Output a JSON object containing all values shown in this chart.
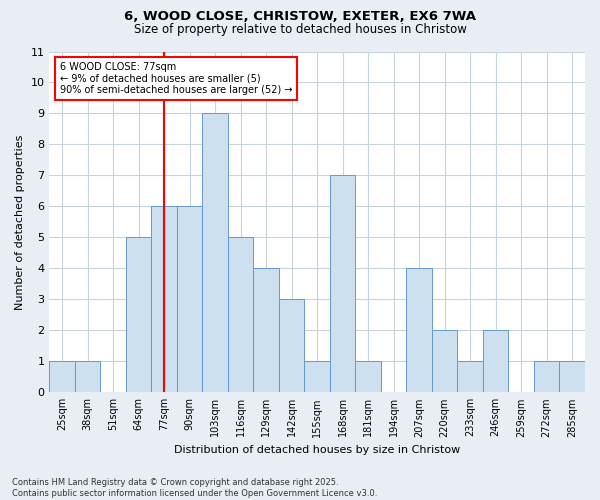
{
  "title_line1": "6, WOOD CLOSE, CHRISTOW, EXETER, EX6 7WA",
  "title_line2": "Size of property relative to detached houses in Christow",
  "xlabel": "Distribution of detached houses by size in Christow",
  "ylabel": "Number of detached properties",
  "categories": [
    "25sqm",
    "38sqm",
    "51sqm",
    "64sqm",
    "77sqm",
    "90sqm",
    "103sqm",
    "116sqm",
    "129sqm",
    "142sqm",
    "155sqm",
    "168sqm",
    "181sqm",
    "194sqm",
    "207sqm",
    "220sqm",
    "233sqm",
    "246sqm",
    "259sqm",
    "272sqm",
    "285sqm"
  ],
  "values": [
    1,
    1,
    0,
    5,
    6,
    6,
    9,
    5,
    4,
    3,
    1,
    7,
    1,
    0,
    4,
    2,
    1,
    2,
    0,
    1,
    1
  ],
  "bar_color": "#cce0f0",
  "bar_edge_color": "#6699cc",
  "subject_label": "6 WOOD CLOSE: 77sqm",
  "annotation_line1": "← 9% of detached houses are smaller (5)",
  "annotation_line2": "90% of semi-detached houses are larger (52) →",
  "annotation_box_color": "white",
  "annotation_box_edge_color": "red",
  "subject_line_color": "red",
  "ylim": [
    0,
    11
  ],
  "yticks": [
    0,
    1,
    2,
    3,
    4,
    5,
    6,
    7,
    8,
    9,
    10,
    11
  ],
  "footer_line1": "Contains HM Land Registry data © Crown copyright and database right 2025.",
  "footer_line2": "Contains public sector information licensed under the Open Government Licence v3.0.",
  "background_color": "#e8eef4",
  "plot_background": "#ffffff",
  "grid_color": "#c8d4dc"
}
